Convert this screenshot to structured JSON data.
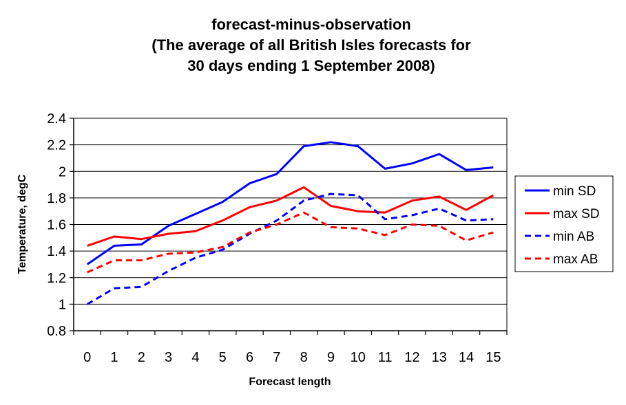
{
  "chart_data": {
    "type": "line",
    "title_lines": [
      "forecast-minus-observation",
      "(The average of all British Isles forecasts for",
      "30 days ending 1 September 2008)"
    ],
    "xlabel": "Forecast length",
    "ylabel": "Temperature, degC",
    "ylim": [
      0.8,
      2.4
    ],
    "yticks": [
      "0.8",
      "1",
      "1.2",
      "1.4",
      "1.6",
      "1.8",
      "2",
      "2.2",
      "2.4"
    ],
    "ytick_values": [
      0.8,
      1.0,
      1.2,
      1.4,
      1.6,
      1.8,
      2.0,
      2.2,
      2.4
    ],
    "categories": [
      "0",
      "1",
      "2",
      "3",
      "4",
      "5",
      "6",
      "7",
      "8",
      "9",
      "10",
      "11",
      "12",
      "13",
      "14",
      "15"
    ],
    "grid": "horizontal",
    "legend_position": "right",
    "series": [
      {
        "name": "min SD",
        "color": "#0000ff",
        "dash": "solid",
        "values": [
          1.3,
          1.44,
          1.45,
          1.59,
          1.68,
          1.77,
          1.91,
          1.98,
          2.19,
          2.22,
          2.19,
          2.02,
          2.06,
          2.13,
          2.01,
          2.03
        ]
      },
      {
        "name": "max SD",
        "color": "#ff0000",
        "dash": "solid",
        "values": [
          1.44,
          1.51,
          1.49,
          1.53,
          1.55,
          1.63,
          1.73,
          1.78,
          1.88,
          1.74,
          1.7,
          1.69,
          1.78,
          1.81,
          1.71,
          1.82
        ]
      },
      {
        "name": "min AB",
        "color": "#0000ff",
        "dash": "dashed",
        "values": [
          1.0,
          1.12,
          1.13,
          1.25,
          1.35,
          1.41,
          1.53,
          1.63,
          1.78,
          1.83,
          1.82,
          1.64,
          1.67,
          1.72,
          1.63,
          1.64
        ]
      },
      {
        "name": "max AB",
        "color": "#ff0000",
        "dash": "dashed",
        "values": [
          1.24,
          1.33,
          1.33,
          1.38,
          1.39,
          1.43,
          1.54,
          1.6,
          1.69,
          1.58,
          1.57,
          1.52,
          1.6,
          1.59,
          1.48,
          1.54
        ]
      }
    ]
  }
}
